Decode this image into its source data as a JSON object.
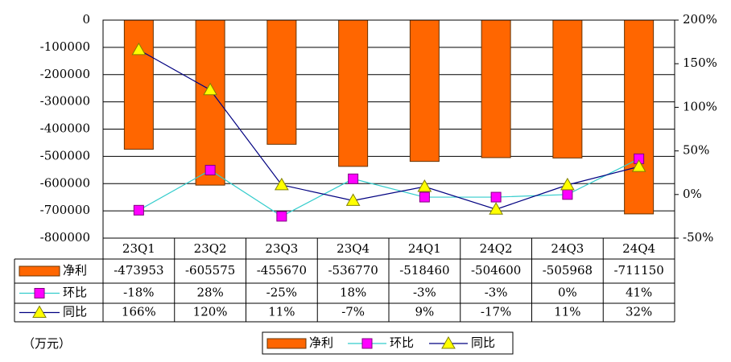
{
  "chart_data": {
    "type": "combo",
    "categories": [
      "23Q1",
      "23Q2",
      "23Q3",
      "23Q4",
      "24Q1",
      "24Q2",
      "24Q3",
      "24Q4"
    ],
    "series": [
      {
        "name": "净利",
        "type": "bar",
        "color": "#FF6600",
        "values": [
          -473953,
          -605575,
          -455670,
          -536770,
          -518460,
          -504600,
          -505968,
          -711150
        ]
      },
      {
        "name": "环比",
        "type": "line",
        "axis": "y2",
        "color": "#33CCCC",
        "marker": "square",
        "marker_color": "#FF00FF",
        "values": [
          -18,
          28,
          -25,
          18,
          -3,
          -3,
          0,
          41
        ],
        "value_labels": [
          "-18%",
          "28%",
          "-25%",
          "18%",
          "-3%",
          "-3%",
          "0%",
          "41%"
        ]
      },
      {
        "name": "同比",
        "type": "line",
        "axis": "y2",
        "color": "#000080",
        "marker": "triangle",
        "marker_color": "#FFFF00",
        "values": [
          166,
          120,
          11,
          -7,
          9,
          -17,
          11,
          32
        ],
        "value_labels": [
          "166%",
          "120%",
          "11%",
          "-7%",
          "9%",
          "-17%",
          "11%",
          "32%"
        ]
      }
    ],
    "ylim": [
      -800000,
      0
    ],
    "yticks": [
      0,
      -100000,
      -200000,
      -300000,
      -400000,
      -500000,
      -600000,
      -700000,
      -800000
    ],
    "y2lim": [
      -50,
      200
    ],
    "y2ticks": [
      {
        "value": 200,
        "label": "200%"
      },
      {
        "value": 150,
        "label": "150%"
      },
      {
        "value": 100,
        "label": "100%"
      },
      {
        "value": 50,
        "label": "50%"
      },
      {
        "value": 0,
        "label": "0%"
      },
      {
        "value": -50,
        "label": "-50%"
      }
    ],
    "grid": true,
    "unit_note": "（万元）"
  }
}
